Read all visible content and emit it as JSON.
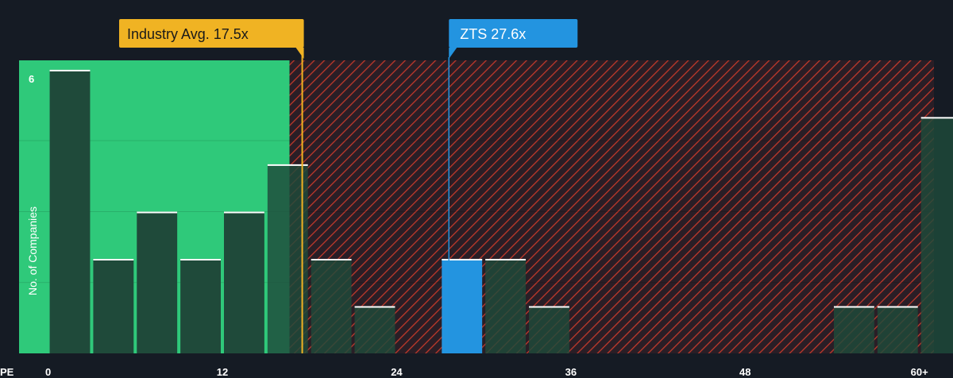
{
  "colors": {
    "background": "#151b24",
    "fair_zone": "#2fc97a",
    "overvalued_zone": "#c0392b",
    "bar": "#1f4a3a",
    "highlight": "#2394e0",
    "industry_marker": "#f0b323"
  },
  "chart_data": {
    "type": "bar",
    "xlabel": "PE",
    "ylabel": "No. of Companies",
    "x_ticks": [
      "0",
      "12",
      "24",
      "36",
      "48",
      "60+"
    ],
    "x_tick_values": [
      0,
      12,
      24,
      36,
      48,
      60
    ],
    "xlim": [
      -2,
      61
    ],
    "ylim": [
      0,
      6.2
    ],
    "y_tick_labels": [
      {
        "value": 6,
        "label": "6"
      }
    ],
    "bin_width": 3,
    "bars": [
      {
        "start": 0,
        "value": 6
      },
      {
        "start": 3,
        "value": 2
      },
      {
        "start": 6,
        "value": 3
      },
      {
        "start": 9,
        "value": 2
      },
      {
        "start": 12,
        "value": 3
      },
      {
        "start": 15,
        "value": 4
      },
      {
        "start": 18,
        "value": 2
      },
      {
        "start": 21,
        "value": 1
      },
      {
        "start": 24,
        "value": 0
      },
      {
        "start": 27,
        "value": 2,
        "highlight": true
      },
      {
        "start": 30,
        "value": 2
      },
      {
        "start": 33,
        "value": 1
      },
      {
        "start": 36,
        "value": 0
      },
      {
        "start": 39,
        "value": 0
      },
      {
        "start": 42,
        "value": 0
      },
      {
        "start": 45,
        "value": 0
      },
      {
        "start": 48,
        "value": 0
      },
      {
        "start": 51,
        "value": 0
      },
      {
        "start": 54,
        "value": 1
      },
      {
        "start": 57,
        "value": 1
      },
      {
        "start": 60,
        "value": 5
      }
    ],
    "industry_avg": {
      "label": "Industry Avg. 17.5x",
      "value": 17.5
    },
    "company": {
      "label": "ZTS 27.6x",
      "value": 27.6
    },
    "grid": true,
    "legend": "none"
  }
}
